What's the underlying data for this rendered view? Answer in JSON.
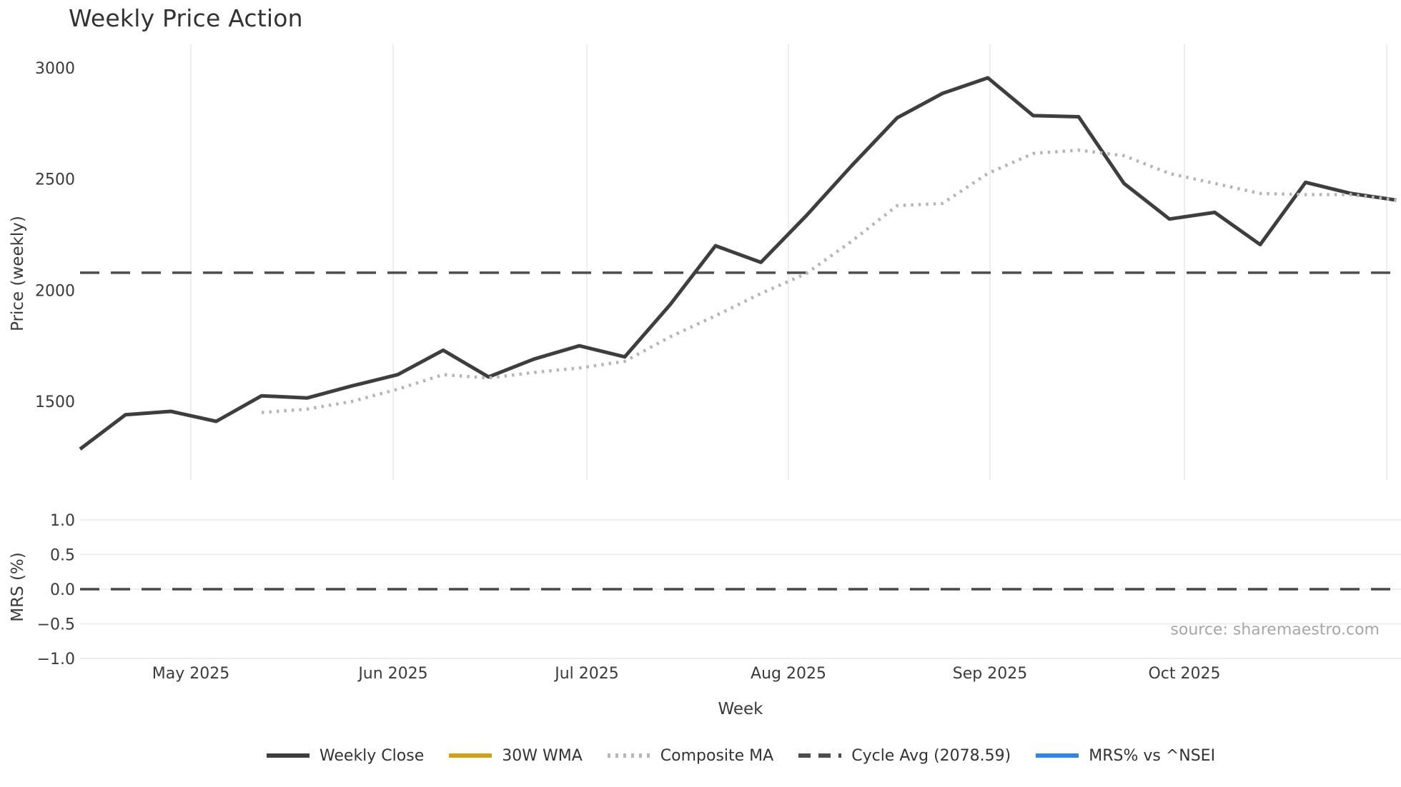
{
  "chart_data": {
    "type": "line",
    "title": "Weekly Price Action",
    "xlabel": "Week",
    "source_note": "source: sharemaestro.com",
    "xticklabels": [
      "May 2025",
      "Jun 2025",
      "Jul 2025",
      "Aug 2025",
      "Sep 2025",
      "Oct 2025"
    ],
    "panels": [
      {
        "name": "price-panel",
        "ylabel": "Price (weekly)",
        "yticks": [
          3000,
          2500,
          2000,
          1500
        ],
        "yticklabels": [
          "3000",
          "2500",
          "2000",
          "1500"
        ],
        "ylim": [
          1150,
          3100
        ],
        "grid": "vertical-months",
        "series": [
          {
            "name": "Weekly Close",
            "style": "solid",
            "color": "#3e3e3e",
            "start_index": 0,
            "values": [
              1285,
              1440,
              1455,
              1410,
              1525,
              1515,
              1570,
              1620,
              1730,
              1610,
              1690,
              1750,
              1700,
              1935,
              2200,
              2125,
              2335,
              2560,
              2775,
              2885,
              2955,
              2785,
              2780,
              2480,
              2320,
              2350,
              2205,
              2485,
              2435,
              2405
            ]
          },
          {
            "name": "30W WMA",
            "style": "solid",
            "color": "#d4a017",
            "start_index": 0,
            "values": []
          },
          {
            "name": "Composite MA",
            "style": "dotted",
            "color": "#b6b6b6",
            "start_index": 4,
            "values": [
              1450,
              1465,
              1500,
              1555,
              1620,
              1605,
              1630,
              1650,
              1680,
              1790,
              1885,
              1985,
              2075,
              2220,
              2380,
              2390,
              2525,
              2615,
              2630,
              2605,
              2525,
              2480,
              2435,
              2430,
              2430,
              2405
            ]
          },
          {
            "name": "Cycle Avg",
            "style": "dashed",
            "color": "#4d4d4d",
            "constant": 2078.59
          }
        ]
      },
      {
        "name": "mrs-panel",
        "ylabel": "MRS (%)",
        "yticks": [
          1.0,
          0.5,
          0.0,
          -0.5,
          -1.0
        ],
        "yticklabels": [
          "1.0",
          "0.5",
          "0.0",
          "−0.5",
          "−1.0"
        ],
        "ylim": [
          -1.1,
          1.15
        ],
        "grid": "horizontal",
        "series": [
          {
            "name": "MRS% vs ^NSEI",
            "style": "solid",
            "color": "#2e86e8",
            "start_index": 0,
            "values": []
          },
          {
            "name": "zero-line",
            "style": "dashed",
            "color": "#474747",
            "constant": 0.0
          }
        ]
      }
    ],
    "legend": [
      {
        "label": "Weekly Close",
        "color": "#3e3e3e",
        "style": "solid"
      },
      {
        "label": "30W WMA",
        "color": "#d4a017",
        "style": "solid"
      },
      {
        "label": "Composite MA",
        "color": "#b6b6b6",
        "style": "dotted"
      },
      {
        "label": "Cycle Avg (2078.59)",
        "color": "#4d4d4d",
        "style": "dashed"
      },
      {
        "label": "MRS% vs ^NSEI",
        "color": "#2e86e8",
        "style": "solid"
      }
    ],
    "colors": {
      "grid": "#ededf2",
      "tick_text": "#3a3a3a",
      "title_text": "#333333",
      "source_text": "#a6a6a6"
    }
  }
}
